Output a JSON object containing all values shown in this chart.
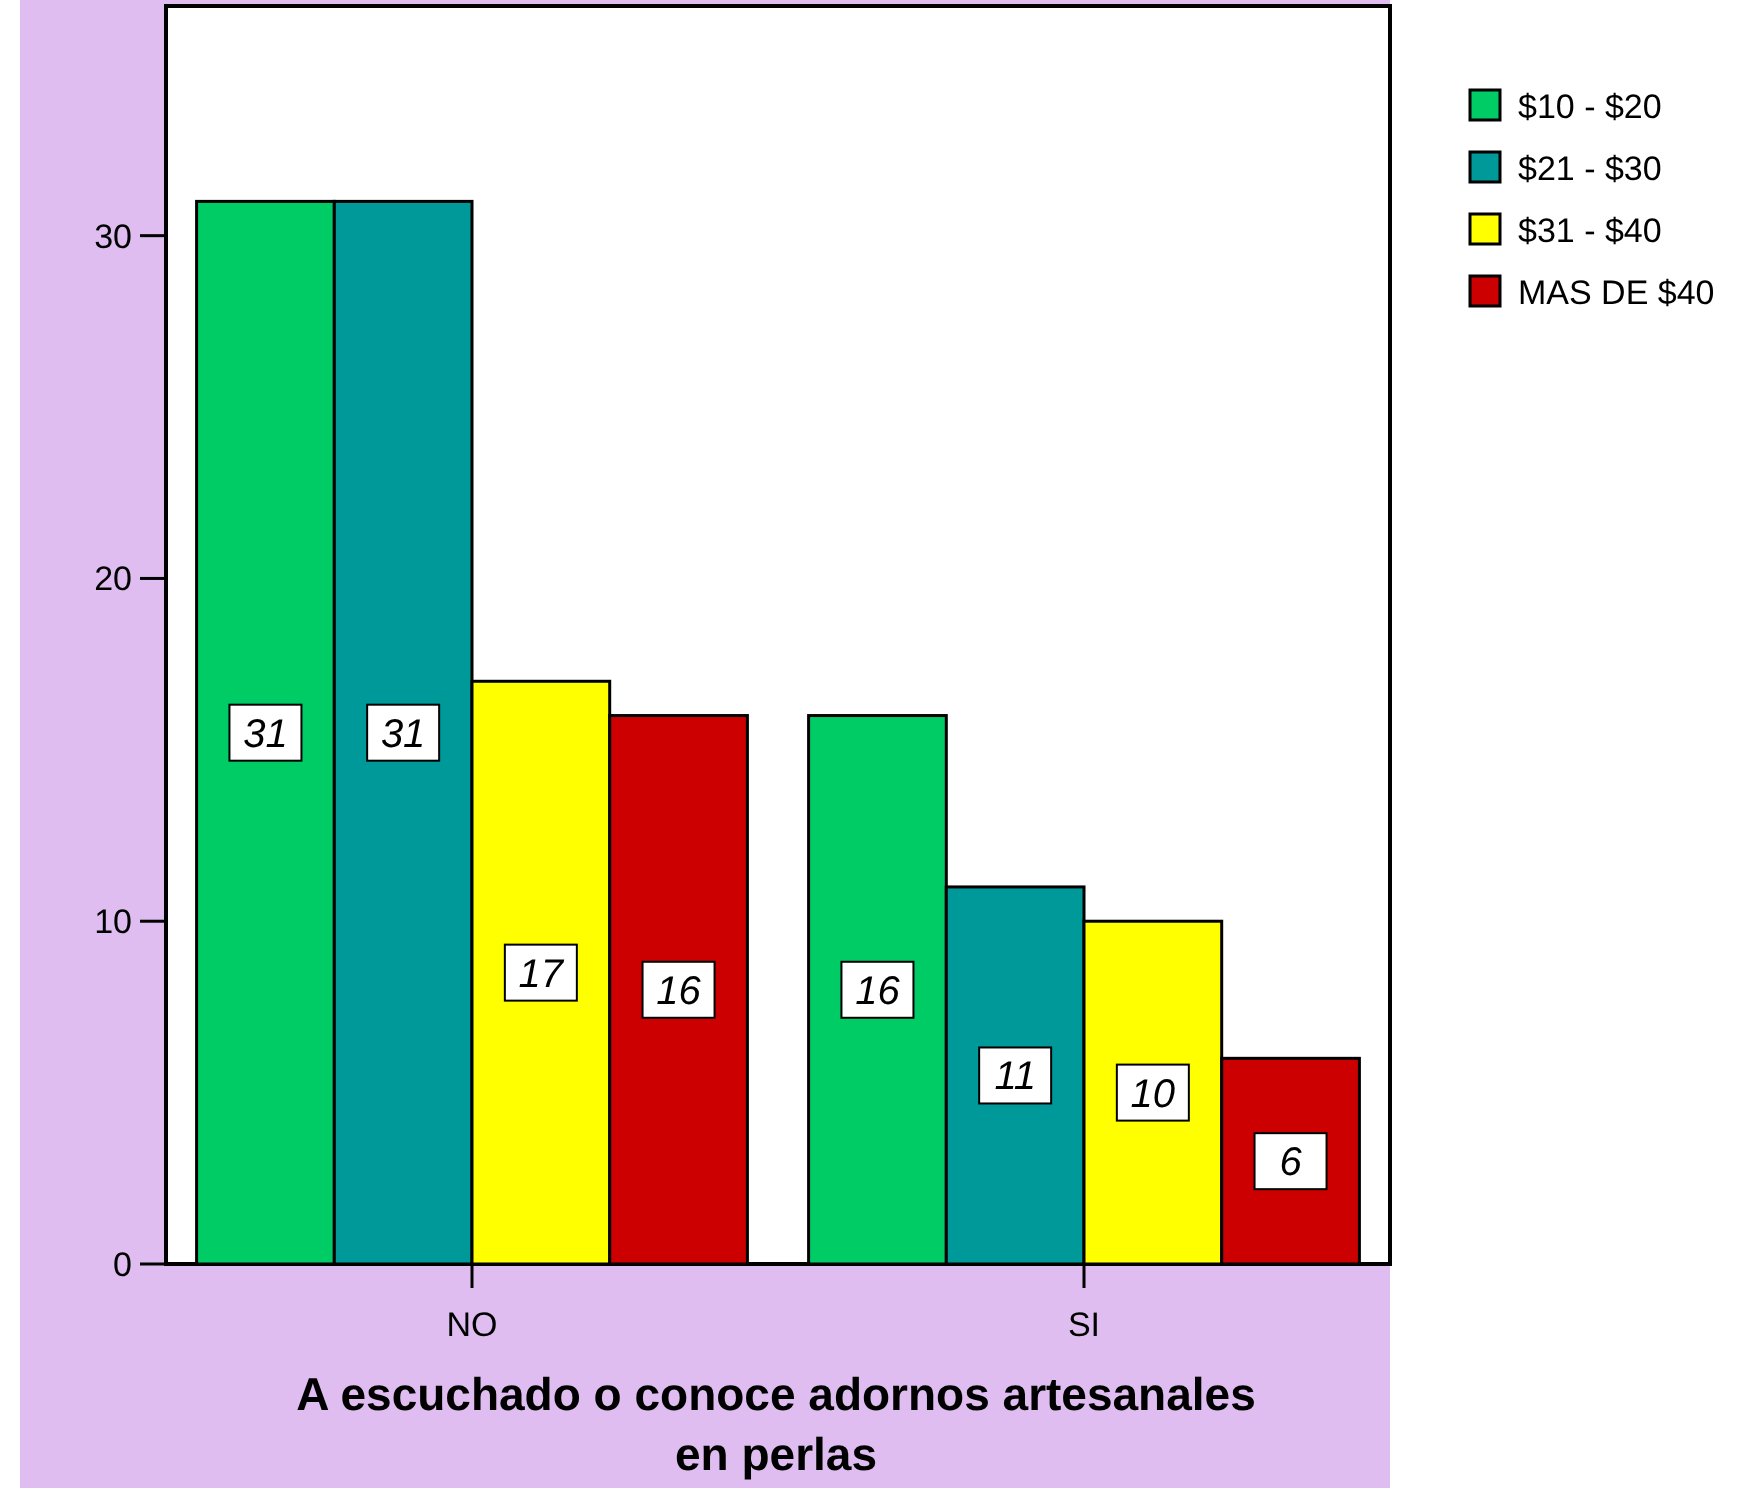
{
  "chart_data": {
    "type": "bar",
    "xlabel": "A escuchado o conoce adornos artesanales en perlas",
    "categories": [
      "NO",
      "SI"
    ],
    "series": [
      {
        "name": "$10 - $20",
        "color": "#00cc66",
        "values": [
          31,
          16
        ]
      },
      {
        "name": "$21 - $30",
        "color": "#009999",
        "values": [
          31,
          11
        ]
      },
      {
        "name": "$31 - $40",
        "color": "#ffff00",
        "values": [
          17,
          10
        ]
      },
      {
        "name": "MAS DE $40",
        "color": "#cc0000",
        "values": [
          16,
          6
        ]
      }
    ],
    "ylim": [
      0,
      36.7
    ],
    "yticks": [
      0,
      10,
      20,
      30
    ],
    "data_labels": true,
    "legend": "right",
    "grid": false
  }
}
